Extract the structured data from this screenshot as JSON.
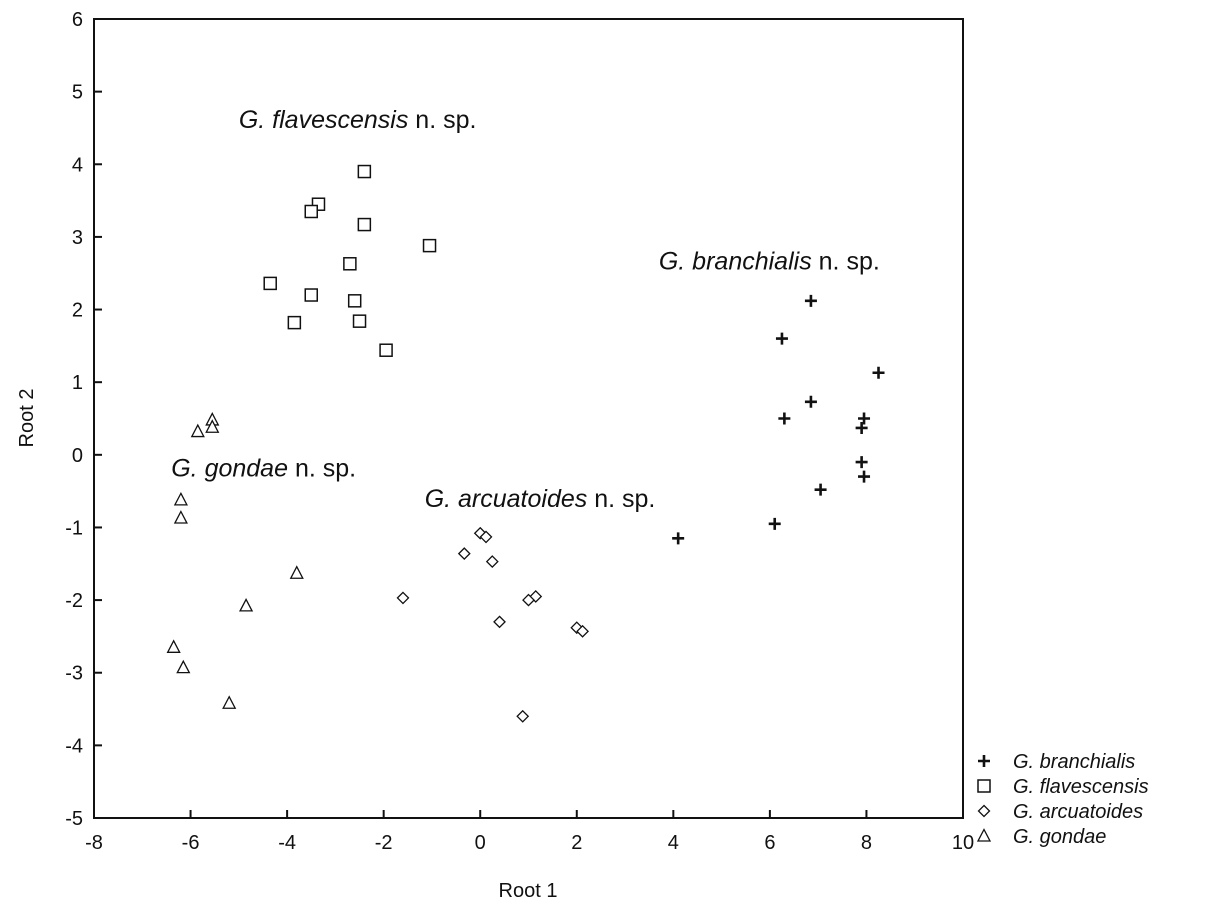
{
  "chart_data": {
    "type": "scatter",
    "title": "",
    "xlabel": "Root 1",
    "ylabel": "Root 2",
    "xlim": [
      -8,
      10
    ],
    "ylim": [
      -5,
      6
    ],
    "xticks": [
      "-8",
      "-6",
      "-4",
      "-2",
      "0",
      "2",
      "4",
      "6",
      "8",
      "10"
    ],
    "yticks": [
      "-5",
      "-4",
      "-3",
      "-2",
      "-1",
      "0",
      "1",
      "2",
      "3",
      "4",
      "5",
      "6"
    ],
    "grid": false,
    "legend_position": "bottom-right outside",
    "marker_color": "#111111",
    "series": [
      {
        "name": "G. branchialis",
        "marker": "plus",
        "points": [
          [
            6.85,
            2.12
          ],
          [
            6.25,
            1.6
          ],
          [
            8.25,
            1.13
          ],
          [
            6.85,
            0.73
          ],
          [
            6.3,
            0.5
          ],
          [
            7.95,
            0.5
          ],
          [
            7.9,
            0.37
          ],
          [
            7.9,
            -0.1
          ],
          [
            7.95,
            -0.3
          ],
          [
            7.05,
            -0.48
          ],
          [
            6.1,
            -0.95
          ],
          [
            4.1,
            -1.15
          ]
        ]
      },
      {
        "name": "G. flavescensis",
        "marker": "square",
        "points": [
          [
            -2.4,
            3.9
          ],
          [
            -3.35,
            3.45
          ],
          [
            -3.5,
            3.35
          ],
          [
            -2.4,
            3.17
          ],
          [
            -1.05,
            2.88
          ],
          [
            -2.7,
            2.63
          ],
          [
            -4.35,
            2.36
          ],
          [
            -3.5,
            2.2
          ],
          [
            -2.6,
            2.12
          ],
          [
            -3.85,
            1.82
          ],
          [
            -2.5,
            1.84
          ],
          [
            -1.95,
            1.44
          ]
        ]
      },
      {
        "name": "G. arcuatoides",
        "marker": "diamond",
        "points": [
          [
            0.0,
            -1.08
          ],
          [
            0.12,
            -1.13
          ],
          [
            -0.33,
            -1.36
          ],
          [
            0.25,
            -1.47
          ],
          [
            -1.6,
            -1.97
          ],
          [
            1.15,
            -1.95
          ],
          [
            1.0,
            -2.0
          ],
          [
            0.4,
            -2.3
          ],
          [
            2.0,
            -2.38
          ],
          [
            2.12,
            -2.43
          ],
          [
            0.88,
            -3.6
          ]
        ]
      },
      {
        "name": "G. gondae",
        "marker": "triangle",
        "points": [
          [
            -5.55,
            0.48
          ],
          [
            -5.55,
            0.38
          ],
          [
            -5.85,
            0.32
          ],
          [
            -6.2,
            -0.62
          ],
          [
            -6.2,
            -0.87
          ],
          [
            -3.8,
            -1.63
          ],
          [
            -4.85,
            -2.08
          ],
          [
            -6.35,
            -2.65
          ],
          [
            -6.15,
            -2.93
          ],
          [
            -5.2,
            -3.42
          ]
        ]
      }
    ],
    "annotations": [
      {
        "italic": "G. flavescensis",
        "normal": " n. sp.",
        "x": -5.0,
        "y": 4.5
      },
      {
        "italic": "G. branchialis",
        "normal": " n. sp.",
        "x": 3.7,
        "y": 2.55
      },
      {
        "italic": "G. gondae",
        "normal": " n. sp.",
        "x": -6.4,
        "y": -0.3
      },
      {
        "italic": "G. arcuatoides",
        "normal": " n. sp.",
        "x": -1.15,
        "y": -0.72
      }
    ]
  }
}
